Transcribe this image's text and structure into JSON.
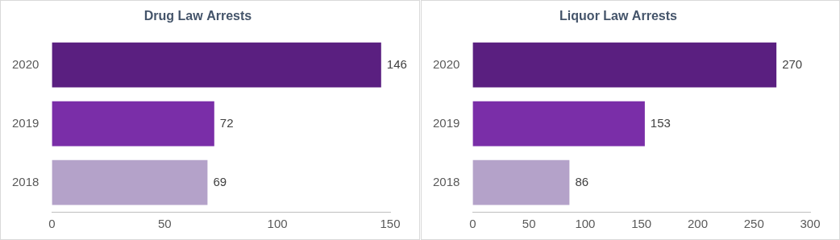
{
  "chart_data": [
    {
      "type": "bar",
      "title": "Drug Law Arrests",
      "orientation": "horizontal",
      "categories": [
        "2020",
        "2019",
        "2018"
      ],
      "values": [
        146,
        72,
        69
      ],
      "colors": [
        "#5a1f80",
        "#7a2ea8",
        "#b4a2c9"
      ],
      "xlim": [
        0,
        150
      ],
      "xticks": [
        0,
        50,
        100,
        150
      ],
      "grid": false,
      "data_labels": true
    },
    {
      "type": "bar",
      "title": "Liquor Law Arrests",
      "orientation": "horizontal",
      "categories": [
        "2020",
        "2019",
        "2018"
      ],
      "values": [
        270,
        153,
        86
      ],
      "colors": [
        "#5a1f80",
        "#7a2ea8",
        "#b4a2c9"
      ],
      "xlim": [
        0,
        300
      ],
      "xticks": [
        0,
        50,
        100,
        150,
        200,
        250,
        300
      ],
      "grid": false,
      "data_labels": true
    }
  ]
}
